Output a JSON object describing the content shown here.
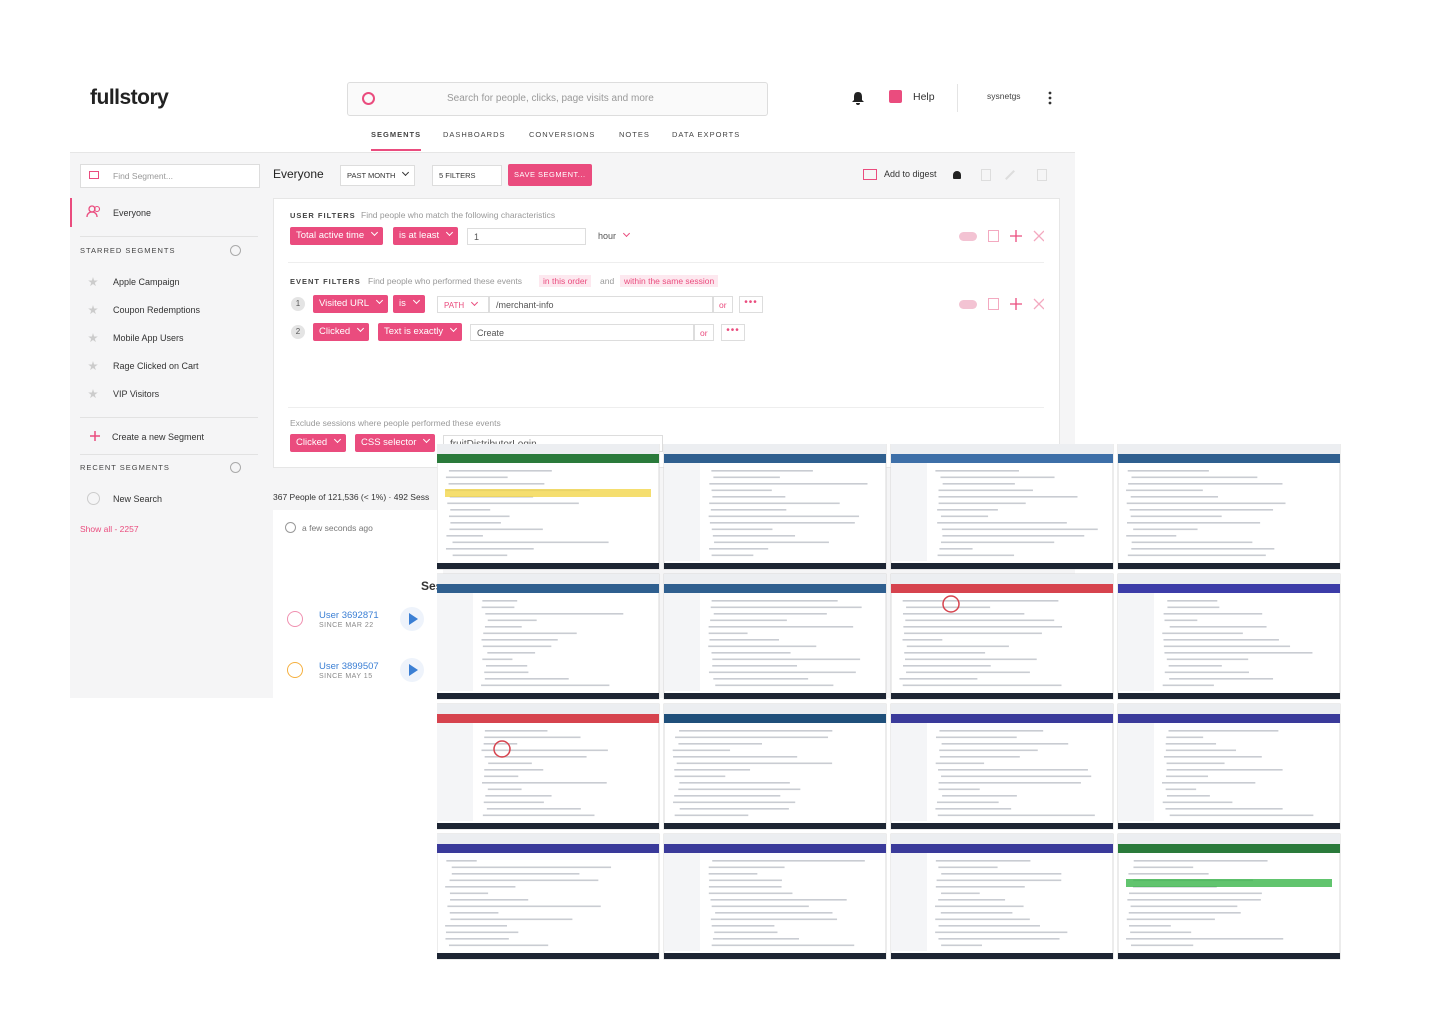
{
  "header": {
    "logo": "fullstory",
    "search_placeholder": "Search for people, clicks, page visits and more",
    "help": "Help",
    "user": "sysnetgs"
  },
  "nav": [
    "SEGMENTS",
    "DASHBOARDS",
    "CONVERSIONS",
    "NOTES",
    "DATA EXPORTS"
  ],
  "sidebar": {
    "find_placeholder": "Find Segment...",
    "everyone": "Everyone",
    "starred_title": "STARRED SEGMENTS",
    "starred": [
      "Apple Campaign",
      "Coupon Redemptions",
      "Mobile App Users",
      "Rage Clicked on Cart",
      "VIP Visitors"
    ],
    "create": "Create a new Segment",
    "recent_title": "RECENT SEGMENTS",
    "recent": [
      "New Search"
    ],
    "show_all": "Show all - 2257"
  },
  "toolbar": {
    "segment": "Everyone",
    "period": "PAST MONTH",
    "filters": "5 FILTERS",
    "save": "SAVE SEGMENT...",
    "digest": "Add to digest"
  },
  "user_filters": {
    "title": "USER FILTERS",
    "description": "Find people who match the following characteristics",
    "field": "Total active time",
    "operator": "is at least",
    "value": "1",
    "unit": "hour"
  },
  "event_filters": {
    "title": "EVENT FILTERS",
    "description": "Find people who performed these events",
    "order": "in this order",
    "and": "and",
    "session": "within the same session",
    "rows": [
      {
        "index": "1",
        "event": "Visited URL",
        "operator": "is",
        "qualifier": "PATH",
        "value": "/merchant-info",
        "or": "or"
      },
      {
        "index": "2",
        "event": "Clicked",
        "operator": "Text is exactly",
        "value": "Create",
        "or": "or"
      }
    ]
  },
  "exclude": {
    "description": "Exclude sessions where people performed these events",
    "event": "Clicked",
    "operator": "CSS selector",
    "value": "fruitDistributorLogin"
  },
  "results": {
    "summary": "367 People of 121,536 (< 1%)",
    "sessions": "492 Sess",
    "time": "a few seconds ago",
    "heading": "Ses",
    "users": [
      {
        "name": "User 3692871",
        "since": "SINCE MAR 22"
      },
      {
        "name": "User 3899507",
        "since": "SINCE MAY 15"
      }
    ]
  }
}
